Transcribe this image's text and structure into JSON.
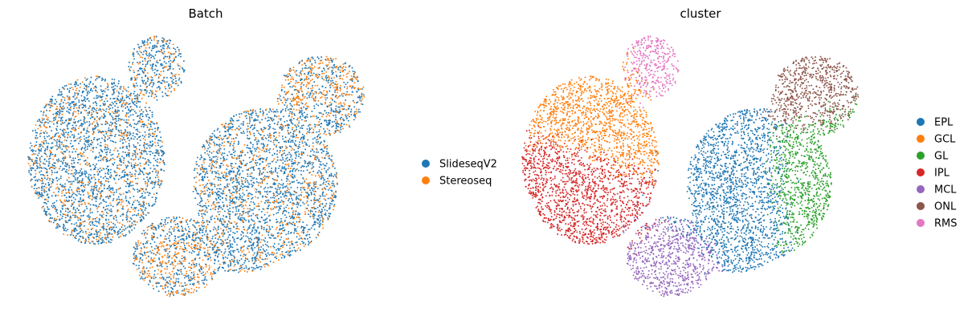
{
  "chart_data": [
    {
      "type": "scatter",
      "title": "Batch",
      "xlabel": "",
      "ylabel": "",
      "grid": false,
      "legend_position": "right",
      "legend": [
        {
          "label": "SlideseqV2",
          "color": "#1f77b4"
        },
        {
          "label": "Stereoseq",
          "color": "#ff7f0e"
        }
      ],
      "series": [
        {
          "name": "SlideseqV2",
          "color": "#1f77b4"
        },
        {
          "name": "Stereoseq",
          "color": "#ff7f0e"
        }
      ]
    },
    {
      "type": "scatter",
      "title": "cluster",
      "xlabel": "",
      "ylabel": "",
      "grid": false,
      "legend_position": "right",
      "legend": [
        {
          "label": "EPL",
          "color": "#1f77b4"
        },
        {
          "label": "GCL",
          "color": "#ff7f0e"
        },
        {
          "label": "GL",
          "color": "#2ca02c"
        },
        {
          "label": "IPL",
          "color": "#d62728"
        },
        {
          "label": "MCL",
          "color": "#9467bd"
        },
        {
          "label": "ONL",
          "color": "#8c564b"
        },
        {
          "label": "RMS",
          "color": "#e377c2"
        }
      ],
      "series": [
        {
          "name": "EPL",
          "color": "#1f77b4"
        },
        {
          "name": "GCL",
          "color": "#ff7f0e"
        },
        {
          "name": "GL",
          "color": "#2ca02c"
        },
        {
          "name": "IPL",
          "color": "#d62728"
        },
        {
          "name": "MCL",
          "color": "#9467bd"
        },
        {
          "name": "ONL",
          "color": "#8c564b"
        },
        {
          "name": "RMS",
          "color": "#e377c2"
        }
      ]
    }
  ]
}
